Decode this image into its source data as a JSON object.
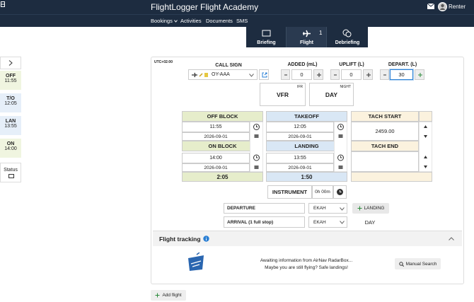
{
  "header": {
    "title": "FlightLogger Flight Academy",
    "user": "Renter",
    "nav": [
      "Bookings",
      "Activities",
      "Documents",
      "SMS"
    ]
  },
  "tabs": [
    {
      "label": "Briefing"
    },
    {
      "label": "Flight",
      "badge": "1"
    },
    {
      "label": "Debriefing"
    }
  ],
  "sidebar": [
    {
      "label": "OFF",
      "time": "11:55"
    },
    {
      "label": "T/O",
      "time": "12:05"
    },
    {
      "label": "LAN",
      "time": "13:55"
    },
    {
      "label": "ON",
      "time": "14:00"
    },
    {
      "label": "Status"
    }
  ],
  "form": {
    "timezone": "UTC+02:00",
    "call_sign": {
      "label": "CALL SIGN",
      "value": "OY-AAA"
    },
    "added": {
      "label": "ADDED (mL)",
      "value": "0"
    },
    "uplift": {
      "label": "UPLIFT (L)",
      "value": "0"
    },
    "depart": {
      "label": "DEPART. (L)",
      "value": "30"
    },
    "flight_rules": {
      "value": "VFR",
      "tag": "IFR"
    },
    "time_of_day": {
      "value": "DAY",
      "tag": "NIGHT"
    },
    "off_block": {
      "label": "OFF BLOCK",
      "time": "11:55",
      "date": "2026-09-01"
    },
    "takeoff": {
      "label": "TAKEOFF",
      "time": "12:05",
      "date": "2026-09-01"
    },
    "on_block": {
      "label": "ON BLOCK",
      "time": "14:00",
      "date": "2026-09-01"
    },
    "landing": {
      "label": "LANDING",
      "time": "13:55",
      "date": "2026-09-01"
    },
    "block_total": "2:05",
    "air_total": "1:50",
    "tach_start": {
      "label": "TACH START",
      "value": "2459.00"
    },
    "tach_end": {
      "label": "TACH END"
    },
    "instrument": {
      "label": "INSTRUMENT",
      "value": "0h 00m"
    },
    "departure": {
      "label": "DEPARTURE",
      "airport": "EKAH"
    },
    "landing_button": "LANDING",
    "arrival": {
      "label": "ARRIVAL (1 full stop)",
      "airport": "EKAH",
      "time_of_day": "DAY"
    }
  },
  "tracking": {
    "title": "Flight tracking",
    "message_1": "Awaiting information from AirNav RadarBox...",
    "message_2": "Maybe you are still flying? Safe landings!",
    "button": "Manual Search"
  },
  "add_flight": "Add flight"
}
